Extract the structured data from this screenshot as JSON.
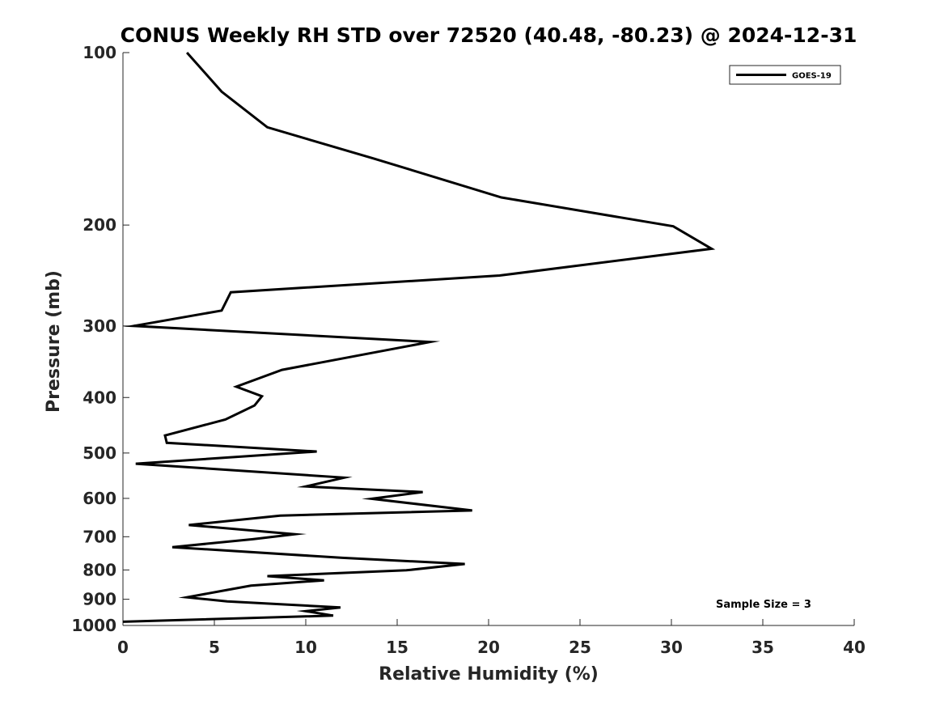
{
  "chart_data": {
    "type": "line",
    "title": "CONUS Weekly RH STD over 72520 (40.48, -80.23) @ 2024-12-31",
    "xlabel": "Relative Humidity (%)",
    "ylabel": "Pressure (mb)",
    "xlim": [
      0,
      40
    ],
    "ylim": [
      100,
      1000
    ],
    "y_scale": "log",
    "y_reversed": true,
    "grid": false,
    "x_ticks": [
      0,
      5,
      10,
      15,
      20,
      25,
      30,
      35,
      40
    ],
    "x_tick_labels": [
      "0",
      "5",
      "10",
      "15",
      "20",
      "25",
      "30",
      "35",
      "40"
    ],
    "y_ticks": [
      100,
      200,
      300,
      400,
      500,
      600,
      700,
      800,
      900,
      1000
    ],
    "y_tick_labels": [
      "100",
      "200",
      "300",
      "400",
      "500",
      "600",
      "700",
      "800",
      "900",
      "1000"
    ],
    "legend_position": "top-right",
    "annotation": "Sample Size = 3",
    "series": [
      {
        "name": "GOES-19",
        "color": "#000000",
        "x": [
          3.5,
          5.4,
          7.9,
          13.7,
          20.7,
          30.1,
          32.2,
          20.6,
          5.9,
          5.4,
          0.6,
          16.8,
          8.7,
          6.2,
          7.6,
          7.2,
          5.6,
          2.3,
          2.4,
          10.6,
          0.7,
          12.1,
          10.0,
          16.4,
          13.6,
          19.1,
          8.6,
          3.6,
          9.4,
          7.1,
          2.7,
          12.0,
          18.7,
          15.5,
          7.9,
          11.0,
          7.0,
          5.6,
          3.5,
          5.7,
          11.9,
          10.0,
          11.5,
          0.0
        ],
        "y": [
          100,
          117,
          135,
          153,
          179,
          201,
          220,
          245,
          262,
          282,
          300,
          320,
          358,
          383,
          398,
          413,
          437,
          466,
          480,
          497,
          522,
          552,
          572,
          585,
          601,
          630,
          643,
          668,
          693,
          707,
          730,
          762,
          781,
          801,
          820,
          834,
          852,
          868,
          893,
          908,
          930,
          944,
          961,
          985
        ]
      }
    ]
  }
}
